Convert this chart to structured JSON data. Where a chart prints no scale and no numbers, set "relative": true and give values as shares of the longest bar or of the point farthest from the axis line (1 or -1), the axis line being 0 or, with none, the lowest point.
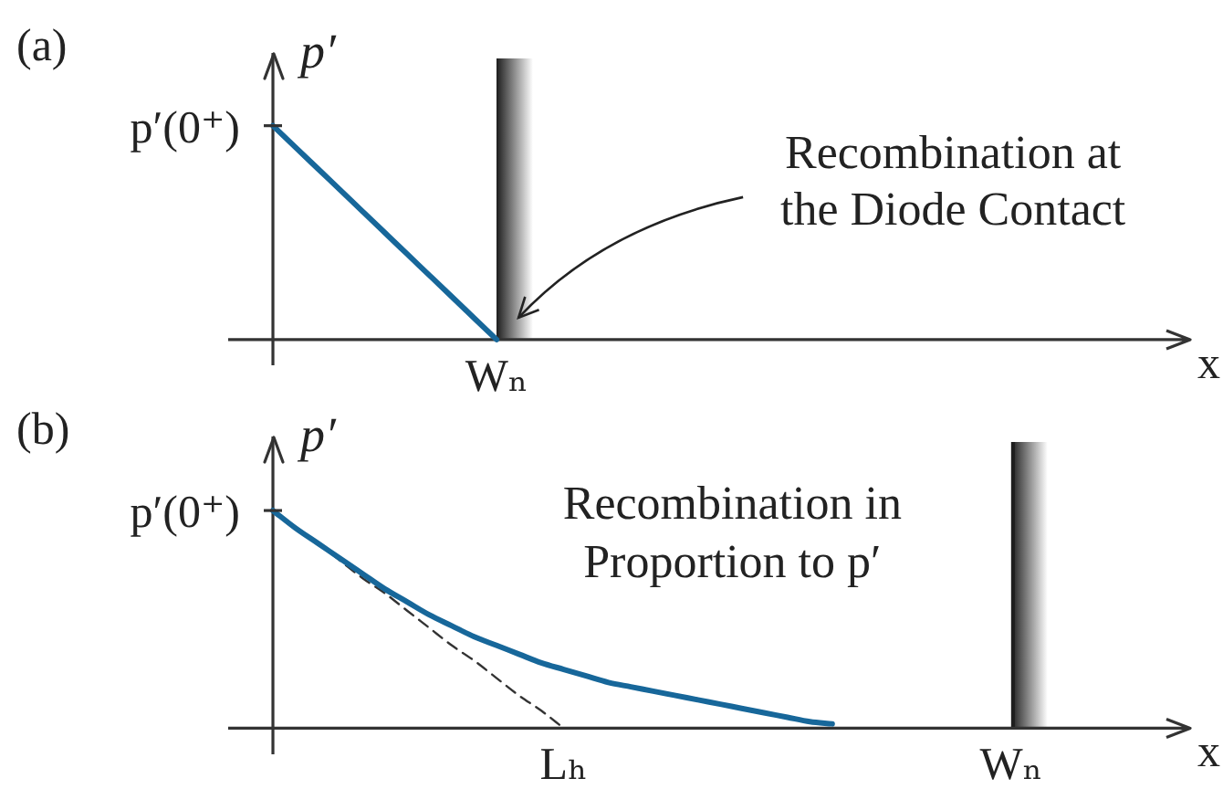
{
  "chart_data": [
    {
      "type": "line",
      "title": "(a)",
      "xlabel": "x",
      "ylabel": "p′",
      "relative": true,
      "categories": [
        null,
        null,
        null,
        null,
        null,
        null,
        null,
        null,
        null,
        null,
        null,
        null,
        null,
        null,
        null,
        null,
        null,
        null,
        null,
        null,
        null,
        null,
        null,
        null,
        null,
        null,
        null,
        null,
        null,
        null,
        null,
        null,
        null,
        null,
        null,
        null,
        null,
        null,
        null,
        null,
        null,
        null,
        null,
        null
      ],
      "series": [
        {
          "color": "#17679a",
          "values": [
            null,
            null,
            1,
            0.9,
            0.8,
            0.7,
            0.6,
            0.5,
            0.4,
            0.3,
            0.2,
            0.1,
            0,
            null,
            null,
            null,
            null,
            null,
            null,
            null,
            null,
            null,
            null,
            null,
            null,
            null,
            null,
            null,
            null,
            null,
            null,
            null,
            null,
            null,
            null,
            null,
            null,
            null,
            null,
            null,
            null,
            null,
            null,
            null
          ]
        }
      ],
      "annotations": [
        "p′(0⁺)",
        "Wₙ",
        "Recombination at the Diode Contact"
      ]
    },
    {
      "type": "line",
      "title": "(b)",
      "xlabel": "x",
      "ylabel": "p′",
      "relative": true,
      "categories": [
        null,
        null,
        null,
        null,
        null,
        null,
        null,
        null,
        null,
        null,
        null,
        null,
        null,
        null,
        null,
        "Lₕ",
        null,
        null,
        null,
        null,
        null,
        null,
        null,
        null,
        null,
        null,
        null,
        null,
        null,
        null,
        null,
        null,
        null,
        null,
        null,
        "Wₙ",
        null,
        null,
        null,
        null,
        null,
        null,
        null,
        null
      ],
      "series": [
        {
          "color": "#17679a",
          "values": [
            null,
            null,
            1,
            0.92,
            0.85,
            0.78,
            0.71,
            0.64,
            0.58,
            0.52,
            0.47,
            0.42,
            0.38,
            0.34,
            0.3,
            0.27,
            0.24,
            0.21,
            0.19,
            0.17,
            0.15,
            0.13,
            0.11,
            0.09,
            0.07,
            0.05,
            0.03,
            0.02,
            null,
            null,
            null,
            null,
            null,
            null,
            null,
            null,
            null,
            null,
            null,
            null,
            null,
            null,
            null,
            null
          ]
        },
        {
          "color": "#333333",
          "line_style": "dashed",
          "values": [
            null,
            null,
            1,
            0.92,
            0.85,
            0.77,
            0.69,
            0.62,
            0.54,
            0.46,
            0.38,
            0.31,
            0.23,
            0.15,
            0.08,
            0,
            null,
            null,
            null,
            null,
            null,
            null,
            null,
            null,
            null,
            null,
            null,
            null,
            null,
            null,
            null,
            null,
            null,
            null,
            null,
            null,
            null,
            null,
            null,
            null,
            null,
            null,
            null,
            null
          ]
        }
      ],
      "ref_lines": [
        {
          "axis": "x",
          "value": "Wₙ",
          "color": "#1e1e1e"
        }
      ],
      "annotations": [
        "p′(0⁺)",
        "Recombination in Proportion to p′"
      ]
    }
  ]
}
